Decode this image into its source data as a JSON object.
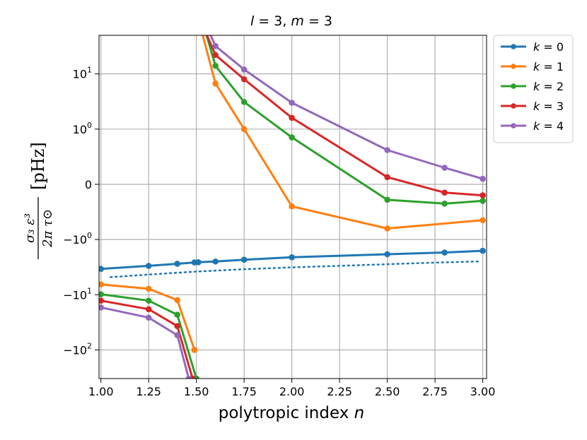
{
  "chart_data": {
    "type": "line",
    "title": "l = 3, m = 3",
    "xlabel": "polytropic index n",
    "ylabel_formula": "σ₃ ε³ / (2π τ⊙)",
    "ylabel_unit": "[pHz]",
    "xlim": [
      0.99,
      3.02
    ],
    "ylim": [
      -330,
      50
    ],
    "yscale": "symlog",
    "linthresh": 1,
    "grid": true,
    "legend_position": "outside top-right",
    "x_ticks": [
      1.0,
      1.25,
      1.5,
      1.75,
      2.0,
      2.25,
      2.5,
      2.75,
      3.0
    ],
    "x_tick_labels": [
      "1.00",
      "1.25",
      "1.50",
      "1.75",
      "2.00",
      "2.25",
      "2.50",
      "2.75",
      "3.00"
    ],
    "y_ticks": [
      {
        "value": 10,
        "base": "10",
        "exp": "1"
      },
      {
        "value": 1,
        "base": "10",
        "exp": "0"
      },
      {
        "value": 0,
        "base": "0",
        "exp": ""
      },
      {
        "value": -1,
        "base": "−10",
        "exp": "0"
      },
      {
        "value": -10,
        "base": "−10",
        "exp": "1"
      },
      {
        "value": -100,
        "base": "−10",
        "exp": "2"
      }
    ],
    "series": [
      {
        "name": "k = 0",
        "color": "#1f77b4",
        "x": [
          1.0,
          1.25,
          1.4,
          1.49,
          1.51,
          1.6,
          1.75,
          2.0,
          2.5,
          2.8,
          3.0
        ],
        "y": [
          -3.4,
          -3.0,
          -2.75,
          -2.6,
          -2.58,
          -2.5,
          -2.32,
          -2.1,
          -1.85,
          -1.72,
          -1.6
        ]
      },
      {
        "name": "k = 0 (asymptote)",
        "color": "#1f77b4",
        "dotted": true,
        "legend": false,
        "x": [
          1.05,
          1.3,
          1.5,
          1.75,
          2.0,
          2.25,
          2.5,
          2.75,
          2.98
        ],
        "y": [
          -4.8,
          -4.2,
          -3.8,
          -3.45,
          -3.2,
          -3.0,
          -2.8,
          -2.62,
          -2.5
        ]
      },
      {
        "name": "k = 1",
        "color": "#ff7f0e",
        "x": [
          1.0,
          1.25,
          1.4,
          1.49
        ],
        "y": [
          -6.5,
          -7.8,
          -12.5,
          -100
        ]
      },
      {
        "name": "k = 1",
        "color": "#ff7f0e",
        "legend": false,
        "x": [
          1.53,
          1.6,
          1.75,
          2.0,
          2.5,
          3.0
        ],
        "y": [
          55,
          6.7,
          1.0,
          -0.4,
          -0.8,
          -0.65
        ]
      },
      {
        "name": "k = 2",
        "color": "#2ca02c",
        "x": [
          1.0,
          1.25,
          1.4,
          1.5
        ],
        "y": [
          -9.8,
          -12.8,
          -23,
          -330
        ]
      },
      {
        "name": "k = 2",
        "color": "#2ca02c",
        "legend": false,
        "x": [
          1.55,
          1.6,
          1.75,
          2.0,
          2.5,
          2.8,
          3.0
        ],
        "y": [
          55,
          14,
          3.1,
          0.85,
          -0.28,
          -0.35,
          -0.3
        ]
      },
      {
        "name": "k = 3",
        "color": "#d62728",
        "x": [
          1.0,
          1.25,
          1.4,
          1.48
        ],
        "y": [
          -12.8,
          -18.3,
          -37,
          -330
        ]
      },
      {
        "name": "k = 3",
        "color": "#d62728",
        "legend": false,
        "x": [
          1.55,
          1.6,
          1.75,
          2.0,
          2.5,
          2.8,
          3.0
        ],
        "y": [
          55,
          22,
          8.0,
          1.6,
          0.13,
          -0.15,
          -0.2
        ]
      },
      {
        "name": "k = 4",
        "color": "#9467bd",
        "x": [
          1.0,
          1.25,
          1.4,
          1.46
        ],
        "y": [
          -17,
          -26,
          -54,
          -330
        ]
      },
      {
        "name": "k = 4",
        "color": "#9467bd",
        "legend": false,
        "x": [
          1.57,
          1.6,
          1.75,
          2.0,
          2.5,
          2.8,
          3.0
        ],
        "y": [
          55,
          32,
          12,
          3.0,
          0.62,
          0.3,
          0.1
        ]
      }
    ]
  }
}
